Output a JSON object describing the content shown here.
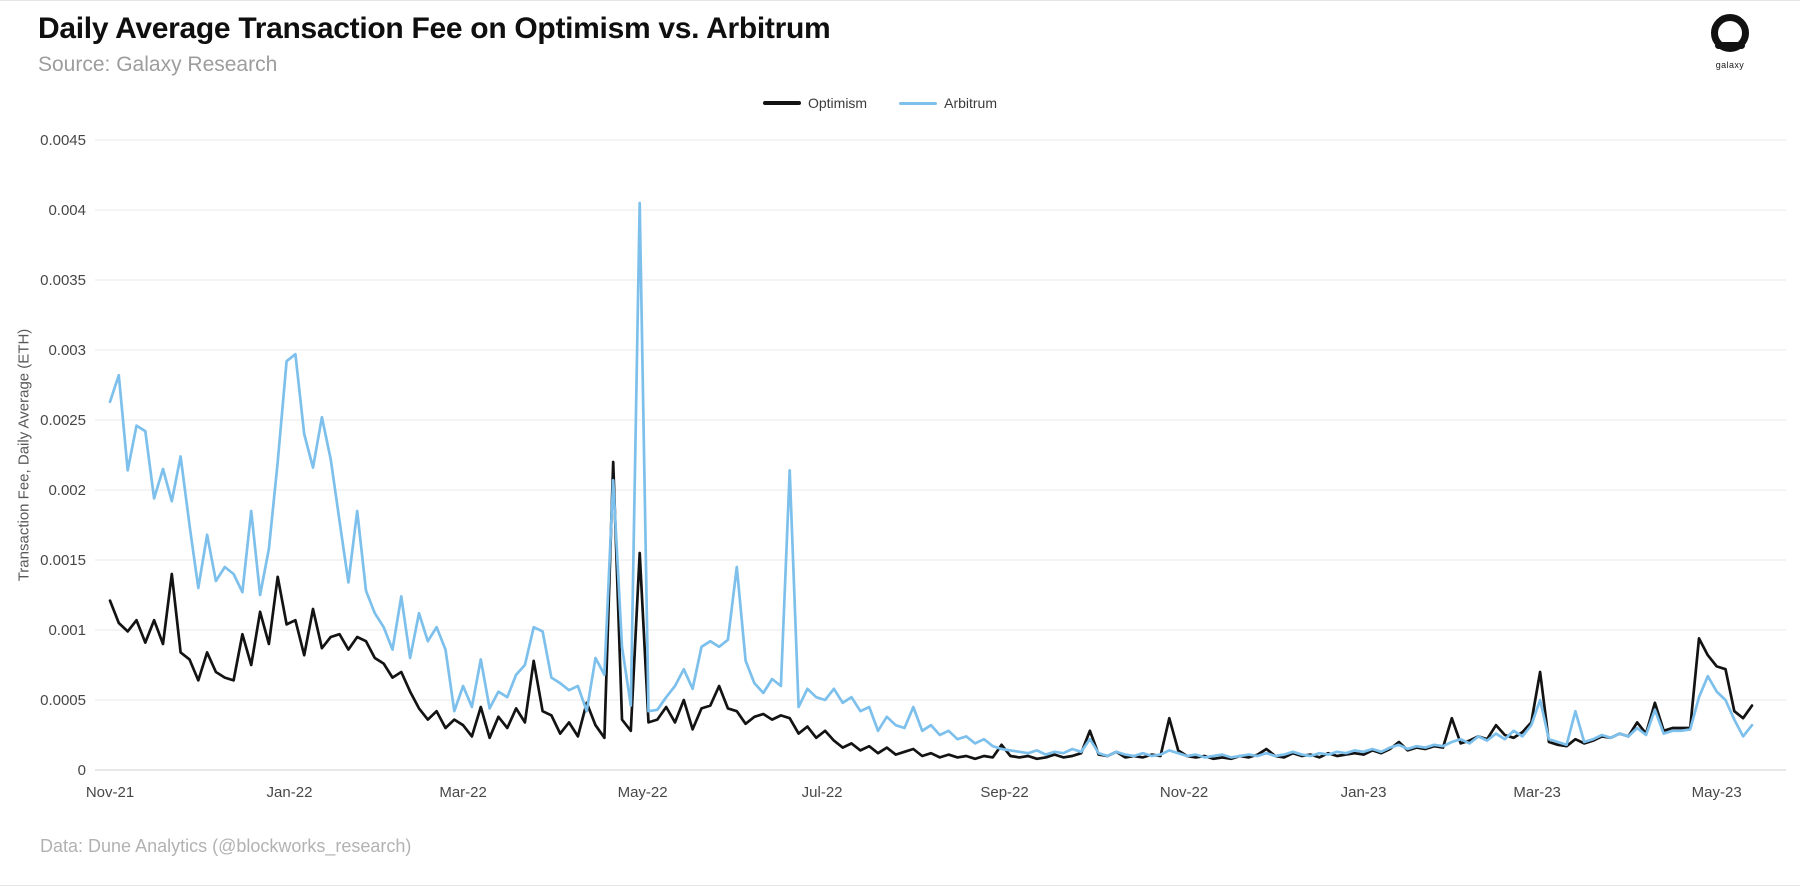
{
  "header": {
    "title": "Daily Average Transaction Fee on Optimism vs. Arbitrum",
    "source": "Source: Galaxy Research"
  },
  "logo": {
    "label": "galaxy"
  },
  "footer": {
    "credit": "Data: Dune Analytics (@blockworks_research)"
  },
  "colors": {
    "optimism_line": "#131313",
    "arbitrum_line": "#7DC0EC",
    "gridline": "#e8e8e8",
    "axis_line": "#d2d2d2",
    "tick_text": "#474747"
  },
  "chart_data": {
    "type": "line",
    "title": "Daily Average Transaction Fee on Optimism vs. Arbitrum",
    "xlabel": "",
    "ylabel": "Transaction Fee, Daily Average (ETH)",
    "ylim": [
      0,
      0.0045
    ],
    "xlim_days": [
      0,
      570
    ],
    "grid": "horizontal",
    "legend_position": "top-center",
    "x_unit": "days since 2021-11-01 (Nov-21)",
    "x_ticks": [
      {
        "day": 0,
        "label": "Nov-21"
      },
      {
        "day": 61,
        "label": "Jan-22"
      },
      {
        "day": 120,
        "label": "Mar-22"
      },
      {
        "day": 181,
        "label": "May-22"
      },
      {
        "day": 242,
        "label": "Jul-22"
      },
      {
        "day": 304,
        "label": "Sep-22"
      },
      {
        "day": 365,
        "label": "Nov-22"
      },
      {
        "day": 426,
        "label": "Jan-23"
      },
      {
        "day": 485,
        "label": "Mar-23"
      },
      {
        "day": 546,
        "label": "May-23"
      }
    ],
    "y_ticks": [
      {
        "value": 0.0045,
        "label": "0.0045"
      },
      {
        "value": 0.004,
        "label": "0.004"
      },
      {
        "value": 0.0035,
        "label": "0.0035"
      },
      {
        "value": 0.003,
        "label": "0.003"
      },
      {
        "value": 0.0025,
        "label": "0.0025"
      },
      {
        "value": 0.002,
        "label": "0.002"
      },
      {
        "value": 0.0015,
        "label": "0.0015"
      },
      {
        "value": 0.001,
        "label": "0.001"
      },
      {
        "value": 0.0005,
        "label": "0.0005"
      },
      {
        "value": 0,
        "label": "0"
      }
    ],
    "x_days": [
      0,
      3,
      6,
      9,
      12,
      15,
      18,
      21,
      24,
      27,
      30,
      33,
      36,
      39,
      42,
      45,
      48,
      51,
      54,
      57,
      60,
      63,
      66,
      69,
      72,
      75,
      78,
      81,
      84,
      87,
      90,
      93,
      96,
      99,
      102,
      105,
      108,
      111,
      114,
      117,
      120,
      123,
      126,
      129,
      132,
      135,
      138,
      141,
      144,
      147,
      150,
      153,
      156,
      159,
      162,
      165,
      168,
      171,
      174,
      177,
      180,
      183,
      186,
      189,
      192,
      195,
      198,
      201,
      204,
      207,
      210,
      213,
      216,
      219,
      222,
      225,
      228,
      231,
      234,
      237,
      240,
      243,
      246,
      249,
      252,
      255,
      258,
      261,
      264,
      267,
      270,
      273,
      276,
      279,
      282,
      285,
      288,
      291,
      294,
      297,
      300,
      303,
      306,
      309,
      312,
      315,
      318,
      321,
      324,
      327,
      330,
      333,
      336,
      339,
      342,
      345,
      348,
      351,
      354,
      357,
      360,
      363,
      366,
      369,
      372,
      375,
      378,
      381,
      384,
      387,
      390,
      393,
      396,
      399,
      402,
      405,
      408,
      411,
      414,
      417,
      420,
      423,
      426,
      429,
      432,
      435,
      438,
      441,
      444,
      447,
      450,
      453,
      456,
      459,
      462,
      465,
      468,
      471,
      474,
      477,
      480,
      483,
      486,
      489,
      492,
      495,
      498,
      501,
      504,
      507,
      510,
      513,
      516,
      519,
      522,
      525,
      528,
      531,
      534,
      537,
      540,
      543,
      546,
      549,
      552,
      555,
      558
    ],
    "series": [
      {
        "name": "Optimism",
        "color": "#131313",
        "values": [
          0.00121,
          0.00105,
          0.00099,
          0.00107,
          0.00091,
          0.00107,
          0.0009,
          0.0014,
          0.00084,
          0.00079,
          0.00064,
          0.00084,
          0.0007,
          0.00066,
          0.00064,
          0.00097,
          0.00075,
          0.00113,
          0.0009,
          0.00138,
          0.00104,
          0.00107,
          0.00082,
          0.00115,
          0.00087,
          0.00095,
          0.00097,
          0.00086,
          0.00095,
          0.00092,
          0.0008,
          0.00076,
          0.00066,
          0.0007,
          0.00056,
          0.00044,
          0.00036,
          0.00042,
          0.0003,
          0.00036,
          0.00032,
          0.00024,
          0.00045,
          0.00023,
          0.00038,
          0.0003,
          0.00044,
          0.00034,
          0.00078,
          0.00042,
          0.00039,
          0.00026,
          0.00034,
          0.00024,
          0.00048,
          0.00032,
          0.00023,
          0.0022,
          0.00036,
          0.00028,
          0.00155,
          0.00034,
          0.00036,
          0.00045,
          0.00034,
          0.0005,
          0.00029,
          0.00044,
          0.00046,
          0.0006,
          0.00044,
          0.00042,
          0.00033,
          0.00038,
          0.0004,
          0.00036,
          0.00039,
          0.00037,
          0.00026,
          0.00031,
          0.00023,
          0.00028,
          0.00021,
          0.00016,
          0.00019,
          0.00014,
          0.00017,
          0.00012,
          0.00016,
          0.00011,
          0.00013,
          0.00015,
          0.0001,
          0.00012,
          9e-05,
          0.00011,
          9e-05,
          0.0001,
          8e-05,
          0.0001,
          9e-05,
          0.00018,
          0.0001,
          9e-05,
          0.0001,
          8e-05,
          9e-05,
          0.00011,
          9e-05,
          0.0001,
          0.00012,
          0.00028,
          0.00011,
          0.0001,
          0.00013,
          9e-05,
          0.0001,
          9e-05,
          0.00011,
          0.0001,
          0.00037,
          0.00014,
          0.0001,
          9e-05,
          0.0001,
          8e-05,
          9e-05,
          8e-05,
          0.0001,
          9e-05,
          0.00011,
          0.00015,
          0.0001,
          9e-05,
          0.00012,
          0.0001,
          0.00011,
          9e-05,
          0.00012,
          0.0001,
          0.00011,
          0.00012,
          0.00011,
          0.00014,
          0.00012,
          0.00015,
          0.0002,
          0.00014,
          0.00016,
          0.00015,
          0.00017,
          0.00016,
          0.00037,
          0.00019,
          0.00021,
          0.00024,
          0.00022,
          0.00032,
          0.00025,
          0.00023,
          0.00027,
          0.00034,
          0.0007,
          0.0002,
          0.00018,
          0.00017,
          0.00022,
          0.00019,
          0.00021,
          0.00024,
          0.00023,
          0.00026,
          0.00024,
          0.00034,
          0.00026,
          0.00048,
          0.00028,
          0.0003,
          0.0003,
          0.0003,
          0.00094,
          0.00082,
          0.00074,
          0.00072,
          0.00042,
          0.00037,
          0.00046
        ]
      },
      {
        "name": "Arbitrum",
        "color": "#7DC0EC",
        "values": [
          0.00263,
          0.00282,
          0.00214,
          0.00246,
          0.00242,
          0.00194,
          0.00215,
          0.00192,
          0.00224,
          0.00175,
          0.0013,
          0.00168,
          0.00135,
          0.00145,
          0.0014,
          0.00127,
          0.00185,
          0.00125,
          0.00158,
          0.0022,
          0.00292,
          0.00297,
          0.0024,
          0.00216,
          0.00252,
          0.00222,
          0.00178,
          0.00134,
          0.00185,
          0.00128,
          0.00112,
          0.00102,
          0.00086,
          0.00124,
          0.0008,
          0.00112,
          0.00092,
          0.00102,
          0.00086,
          0.00042,
          0.0006,
          0.00045,
          0.00079,
          0.00044,
          0.00056,
          0.00052,
          0.00068,
          0.00075,
          0.00102,
          0.00099,
          0.00066,
          0.00062,
          0.00057,
          0.0006,
          0.00042,
          0.0008,
          0.00068,
          0.00207,
          0.00088,
          0.00046,
          0.00405,
          0.00042,
          0.00043,
          0.00052,
          0.0006,
          0.00072,
          0.00058,
          0.00088,
          0.00092,
          0.00088,
          0.00093,
          0.00145,
          0.00078,
          0.00062,
          0.00055,
          0.00065,
          0.0006,
          0.00214,
          0.00045,
          0.00058,
          0.00052,
          0.0005,
          0.00058,
          0.00048,
          0.00052,
          0.00042,
          0.00045,
          0.00028,
          0.00038,
          0.00032,
          0.0003,
          0.00045,
          0.00028,
          0.00032,
          0.00025,
          0.00028,
          0.00022,
          0.00024,
          0.00019,
          0.00022,
          0.00017,
          0.00015,
          0.00014,
          0.00013,
          0.00012,
          0.00014,
          0.00011,
          0.00013,
          0.00012,
          0.00015,
          0.00013,
          0.00022,
          0.00012,
          0.0001,
          0.00013,
          0.00011,
          0.0001,
          0.00012,
          0.0001,
          0.00011,
          0.00014,
          0.00012,
          0.0001,
          0.00011,
          9e-05,
          0.0001,
          0.00011,
          9e-05,
          0.0001,
          0.00011,
          0.0001,
          0.00012,
          0.0001,
          0.00011,
          0.00013,
          0.00011,
          0.0001,
          0.00012,
          0.00011,
          0.00013,
          0.00012,
          0.00014,
          0.00013,
          0.00015,
          0.00013,
          0.00016,
          0.00018,
          0.00015,
          0.00017,
          0.00016,
          0.00018,
          0.00017,
          0.0002,
          0.00022,
          0.00019,
          0.00024,
          0.00021,
          0.00026,
          0.00022,
          0.00028,
          0.00024,
          0.00032,
          0.0005,
          0.00022,
          0.0002,
          0.00018,
          0.00042,
          0.0002,
          0.00022,
          0.00025,
          0.00023,
          0.00026,
          0.00024,
          0.0003,
          0.00025,
          0.00043,
          0.00026,
          0.00028,
          0.00028,
          0.00029,
          0.00052,
          0.00067,
          0.00056,
          0.0005,
          0.00036,
          0.00024,
          0.00032
        ]
      }
    ]
  }
}
